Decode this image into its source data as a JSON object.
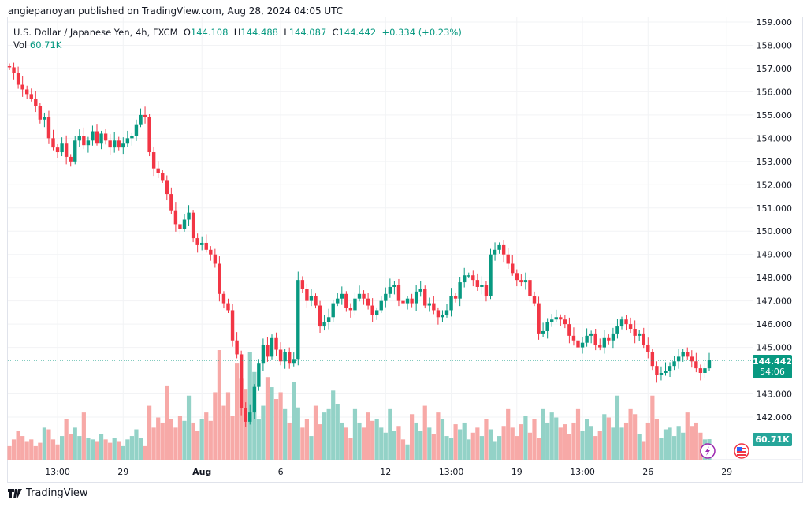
{
  "header": {
    "published": "angiepanoyan published on TradingView.com, Aug 28, 2024 04:05 UTC"
  },
  "legend": {
    "symbol": "U.S. Dollar / Japanese Yen, 4h, FXCM",
    "o_label": "O",
    "o": "144.108",
    "h_label": "H",
    "h": "144.488",
    "l_label": "L",
    "l": "144.087",
    "c_label": "C",
    "c": "144.442",
    "change": "+0.334 (+0.23%)",
    "vol_label": "Vol",
    "vol": "60.71K"
  },
  "badges": {
    "price": "144.442",
    "countdown": "54:06",
    "volume": "60.71K"
  },
  "footer": {
    "brand": "TradingView"
  },
  "colors": {
    "up": "#089981",
    "down": "#f23645",
    "vol_up": "#93d2c7",
    "vol_down": "#f7a9a7",
    "lightning": "#9c27b0",
    "flag": "#f23645"
  },
  "chart_data": {
    "type": "candlestick",
    "title": "U.S. Dollar / Japanese Yen, 4h, FXCM",
    "ylim": [
      141,
      159
    ],
    "y_ticks": [
      "159.000",
      "158.000",
      "157.000",
      "156.000",
      "155.000",
      "154.000",
      "153.000",
      "152.000",
      "151.000",
      "150.000",
      "149.000",
      "148.000",
      "147.000",
      "146.000",
      "145.000",
      "143.000",
      "142.000"
    ],
    "x_ticks": [
      {
        "label": "13:00",
        "index": 11,
        "bold": false
      },
      {
        "label": "29",
        "index": 26,
        "bold": false
      },
      {
        "label": "Aug",
        "index": 44,
        "bold": true
      },
      {
        "label": "6",
        "index": 62,
        "bold": false
      },
      {
        "label": "12",
        "index": 86,
        "bold": false
      },
      {
        "label": "13:00",
        "index": 101,
        "bold": false
      },
      {
        "label": "19",
        "index": 116,
        "bold": false
      },
      {
        "label": "13:00",
        "index": 131,
        "bold": false
      },
      {
        "label": "26",
        "index": 146,
        "bold": false
      },
      {
        "label": "29",
        "index": 164,
        "bold": false
      }
    ],
    "close": [
      157.05,
      156.8,
      156.3,
      156.1,
      155.9,
      155.7,
      155.4,
      154.8,
      154.9,
      154.0,
      153.6,
      153.4,
      153.8,
      153.2,
      153.0,
      153.9,
      154.1,
      153.7,
      153.9,
      154.3,
      153.8,
      154.2,
      153.9,
      153.6,
      153.9,
      153.6,
      153.8,
      154.0,
      154.1,
      154.6,
      155.0,
      154.9,
      153.4,
      152.7,
      152.5,
      152.2,
      151.6,
      150.9,
      150.3,
      150.1,
      150.5,
      150.8,
      149.7,
      149.4,
      149.5,
      149.2,
      149.0,
      148.6,
      147.3,
      146.9,
      146.6,
      145.3,
      144.7,
      142.4,
      141.8,
      142.2,
      143.3,
      144.3,
      145.1,
      144.6,
      145.4,
      144.9,
      144.4,
      144.8,
      144.3,
      144.5,
      147.9,
      147.5,
      147.0,
      147.2,
      146.8,
      145.9,
      146.1,
      146.3,
      146.9,
      147.1,
      147.3,
      146.7,
      146.6,
      147.1,
      147.3,
      147.1,
      146.8,
      146.4,
      146.6,
      147.0,
      147.3,
      147.6,
      147.7,
      147.0,
      146.9,
      147.1,
      146.9,
      147.4,
      147.5,
      146.8,
      146.9,
      146.6,
      146.3,
      146.4,
      146.6,
      147.2,
      147.1,
      147.8,
      148.1,
      148.1,
      147.9,
      147.6,
      147.7,
      147.2,
      149.0,
      149.2,
      149.4,
      149.0,
      148.6,
      148.2,
      147.9,
      147.8,
      147.9,
      147.2,
      146.9,
      145.6,
      145.7,
      146.1,
      146.2,
      146.3,
      146.2,
      146.0,
      145.5,
      145.3,
      145.0,
      145.2,
      145.5,
      145.6,
      145.1,
      145.0,
      145.4,
      145.3,
      145.6,
      145.9,
      146.2,
      146.0,
      145.8,
      145.5,
      145.6,
      145.1,
      144.8,
      144.2,
      143.8,
      143.9,
      144.0,
      144.2,
      144.4,
      144.6,
      144.8,
      144.6,
      144.4,
      144.1,
      143.9,
      144.1,
      144.442
    ],
    "volume_k": [
      40,
      60,
      85,
      70,
      55,
      60,
      40,
      50,
      95,
      90,
      60,
      45,
      70,
      120,
      75,
      95,
      70,
      140,
      65,
      60,
      55,
      75,
      60,
      50,
      65,
      55,
      40,
      60,
      70,
      90,
      65,
      40,
      160,
      95,
      125,
      110,
      220,
      120,
      95,
      130,
      115,
      190,
      110,
      85,
      120,
      140,
      115,
      200,
      325,
      160,
      200,
      130,
      285,
      240,
      210,
      320,
      260,
      120,
      160,
      245,
      215,
      180,
      200,
      150,
      110,
      230,
      155,
      95,
      120,
      70,
      160,
      105,
      140,
      150,
      205,
      165,
      110,
      95,
      65,
      150,
      110,
      95,
      140,
      115,
      120,
      95,
      80,
      150,
      85,
      100,
      60,
      45,
      135,
      110,
      85,
      160,
      95,
      75,
      140,
      120,
      70,
      65,
      105,
      90,
      110,
      60,
      80,
      95,
      70,
      120,
      90,
      55,
      70,
      100,
      150,
      95,
      70,
      105,
      130,
      80,
      120,
      65,
      150,
      110,
      140,
      125,
      95,
      105,
      75,
      110,
      150,
      85,
      120,
      100,
      70,
      85,
      135,
      125,
      95,
      190,
      95,
      110,
      150,
      135,
      75,
      55,
      110,
      190,
      120,
      65,
      90,
      95,
      70,
      100,
      80,
      140,
      100,
      110,
      80,
      60,
      60.71
    ]
  }
}
